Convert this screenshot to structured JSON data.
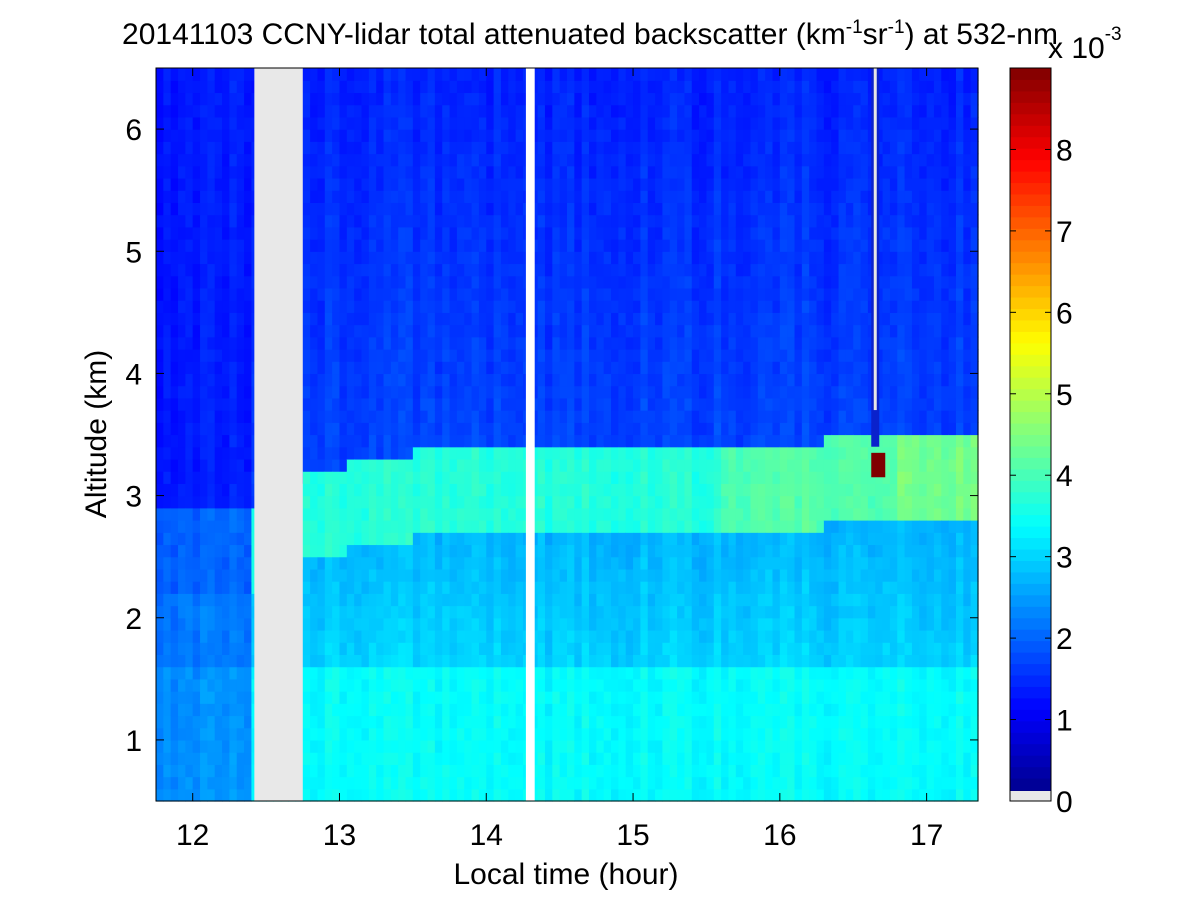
{
  "chart_data": {
    "type": "heatmap",
    "title": {
      "prefix": "20141103 CCNY-lidar total attenuated backscatter (km",
      "sup1": "-1",
      "mid": "sr",
      "sup2": "-1",
      "suffix": ") at 532-nm"
    },
    "xlabel": "Local time (hour)",
    "ylabel": "Altitude (km)",
    "xlim": [
      11.75,
      17.35
    ],
    "ylim": [
      0.5,
      6.5
    ],
    "xticks": [
      12,
      13,
      14,
      15,
      16,
      17
    ],
    "yticks": [
      1,
      2,
      3,
      4,
      5,
      6
    ],
    "colorbar": {
      "colormap": "jet",
      "range": [
        0,
        9
      ],
      "ticks": [
        0,
        1,
        2,
        3,
        4,
        5,
        6,
        7,
        8
      ],
      "multiplier": {
        "base": "x 10",
        "exp": "-3"
      },
      "nodata_color": "#e8e8e8"
    },
    "no_data_intervals": [
      [
        12.42,
        12.75
      ],
      [
        14.27,
        14.33
      ]
    ],
    "layers": {
      "note_free": true,
      "boundary_layer_top_km": [
        {
          "x": 11.75,
          "y": 2.6
        },
        {
          "x": 12.4,
          "y": 2.6
        },
        {
          "x": 12.8,
          "y": 2.9
        },
        {
          "x": 13.5,
          "y": 3.05
        },
        {
          "x": 14.2,
          "y": 3.1
        },
        {
          "x": 14.5,
          "y": 3.1
        },
        {
          "x": 15.0,
          "y": 3.15
        },
        {
          "x": 15.5,
          "y": 3.1
        },
        {
          "x": 16.0,
          "y": 3.1
        },
        {
          "x": 16.6,
          "y": 3.2
        },
        {
          "x": 17.35,
          "y": 3.2
        }
      ]
    },
    "cloud_feature": {
      "x": 16.65,
      "altitude_km": [
        3.15,
        3.35
      ],
      "peak_value": 9
    }
  },
  "colors": {
    "background": "#ffffff",
    "axis": "#000000",
    "nodata": "#e8e8e8",
    "gap": "#ffffff"
  }
}
